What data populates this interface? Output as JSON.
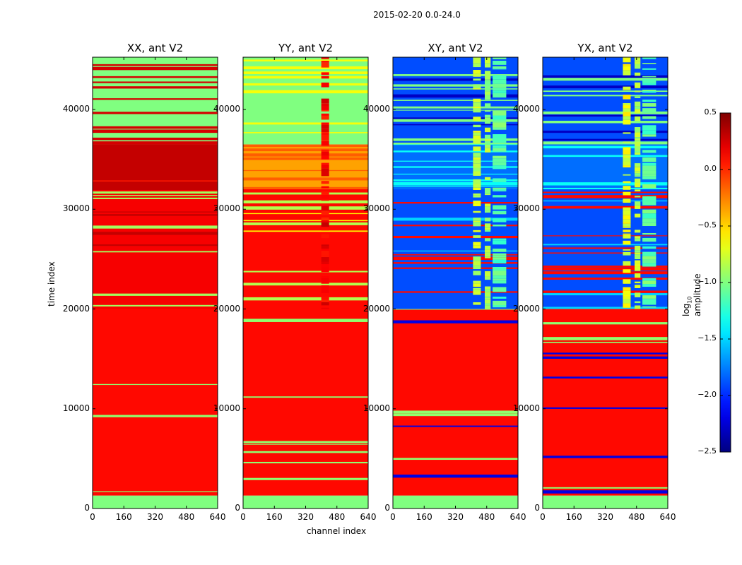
{
  "chart_data": {
    "type": "heatmap",
    "title": "2015-02-20 0.0-24.0",
    "xlabel": "channel index",
    "ylabel": "time index",
    "xlim": [
      0,
      640
    ],
    "ylim": [
      0,
      45240
    ],
    "xticks": [
      "0",
      "160",
      "320",
      "480",
      "640"
    ],
    "xtick_values": [
      0,
      160,
      320,
      480,
      640
    ],
    "yticks": [
      "0",
      "10000",
      "20000",
      "30000",
      "40000"
    ],
    "ytick_values": [
      0,
      10000,
      20000,
      30000,
      40000
    ],
    "colormap": "jet",
    "colorbar": {
      "label_prefix": "log",
      "label_sub": "10",
      "label_suffix": " amplitude",
      "range": [
        -2.5,
        0.5
      ],
      "ticks": [
        "0.5",
        "0.0",
        "−0.5",
        "−1.0",
        "−1.5",
        "−2.0",
        "−2.5"
      ],
      "tick_values": [
        0.5,
        0.0,
        -0.5,
        -1.0,
        -1.5,
        -2.0,
        -2.5
      ]
    },
    "panels": [
      {
        "title": "XX, ant V2",
        "bands": [
          {
            "t0": 0,
            "t1": 1300,
            "base": -1.0,
            "stripe": -1.0,
            "stripe_frac": 0
          },
          {
            "t0": 1300,
            "t1": 20000,
            "base": 0.1,
            "stripe": -0.95,
            "stripe_frac": 0.08
          },
          {
            "t0": 20000,
            "t1": 32000,
            "base": 0.15,
            "stripe": -0.9,
            "stripe_frac": 0.25,
            "alt": 0.3
          },
          {
            "t0": 32000,
            "t1": 36500,
            "base": 0.3,
            "stripe": 0.05,
            "stripe_frac": 0.2
          },
          {
            "t0": 36500,
            "t1": 45240,
            "base": -1.0,
            "stripe": 0.25,
            "stripe_frac": 0.4
          }
        ],
        "column_bands": []
      },
      {
        "title": "YY, ant V2",
        "bands": [
          {
            "t0": 0,
            "t1": 1300,
            "base": -1.0,
            "stripe": -1.0,
            "stripe_frac": 0
          },
          {
            "t0": 1300,
            "t1": 20000,
            "base": 0.1,
            "stripe": -0.95,
            "stripe_frac": 0.1
          },
          {
            "t0": 20000,
            "t1": 32000,
            "base": 0.1,
            "stripe": -0.85,
            "stripe_frac": 0.3,
            "alt": -0.6
          },
          {
            "t0": 32000,
            "t1": 36500,
            "base": -0.35,
            "stripe": -0.15,
            "stripe_frac": 0.3
          },
          {
            "t0": 36500,
            "t1": 45240,
            "base": -1.0,
            "stripe": -0.65,
            "stripe_frac": 0.35
          }
        ],
        "column_bands": [
          {
            "c0": 400,
            "c1": 440,
            "t0": 20000,
            "t1": 45240,
            "value": 0.15
          }
        ]
      },
      {
        "title": "XY, ant V2",
        "bands": [
          {
            "t0": 0,
            "t1": 1300,
            "base": -1.0,
            "stripe": -1.0,
            "stripe_frac": 0
          },
          {
            "t0": 1300,
            "t1": 20000,
            "base": 0.1,
            "stripe": -2.2,
            "stripe_frac": 0.12,
            "alt": -0.95
          },
          {
            "t0": 20000,
            "t1": 32000,
            "base": -1.9,
            "stripe": 0.1,
            "stripe_frac": 0.35,
            "alt": -1.5
          },
          {
            "t0": 32000,
            "t1": 36500,
            "base": -1.8,
            "stripe": -1.35,
            "stripe_frac": 0.4
          },
          {
            "t0": 36500,
            "t1": 45240,
            "base": -1.9,
            "stripe": -1.0,
            "stripe_frac": 0.4,
            "alt": -2.3
          }
        ],
        "column_bands": [
          {
            "c0": 410,
            "c1": 450,
            "t0": 20000,
            "t1": 45240,
            "value": -0.8
          },
          {
            "c0": 470,
            "c1": 500,
            "t0": 20000,
            "t1": 45240,
            "value": -0.9
          },
          {
            "c0": 510,
            "c1": 580,
            "t0": 20000,
            "t1": 45240,
            "value": -1.1
          }
        ]
      },
      {
        "title": "YX, ant V2",
        "bands": [
          {
            "t0": 0,
            "t1": 1300,
            "base": -1.0,
            "stripe": -1.0,
            "stripe_frac": 0
          },
          {
            "t0": 1300,
            "t1": 20000,
            "base": 0.1,
            "stripe": -2.2,
            "stripe_frac": 0.12,
            "alt": -0.95
          },
          {
            "t0": 20000,
            "t1": 32000,
            "base": -1.9,
            "stripe": 0.1,
            "stripe_frac": 0.35,
            "alt": -1.5
          },
          {
            "t0": 32000,
            "t1": 36500,
            "base": -1.8,
            "stripe": -1.35,
            "stripe_frac": 0.4
          },
          {
            "t0": 36500,
            "t1": 45240,
            "base": -1.9,
            "stripe": -1.0,
            "stripe_frac": 0.4,
            "alt": -2.3
          }
        ],
        "column_bands": [
          {
            "c0": 410,
            "c1": 450,
            "t0": 20000,
            "t1": 45240,
            "value": -0.7
          },
          {
            "c0": 470,
            "c1": 500,
            "t0": 20000,
            "t1": 45240,
            "value": -0.85
          },
          {
            "c0": 510,
            "c1": 580,
            "t0": 20000,
            "t1": 45240,
            "value": -1.1
          }
        ]
      }
    ]
  }
}
